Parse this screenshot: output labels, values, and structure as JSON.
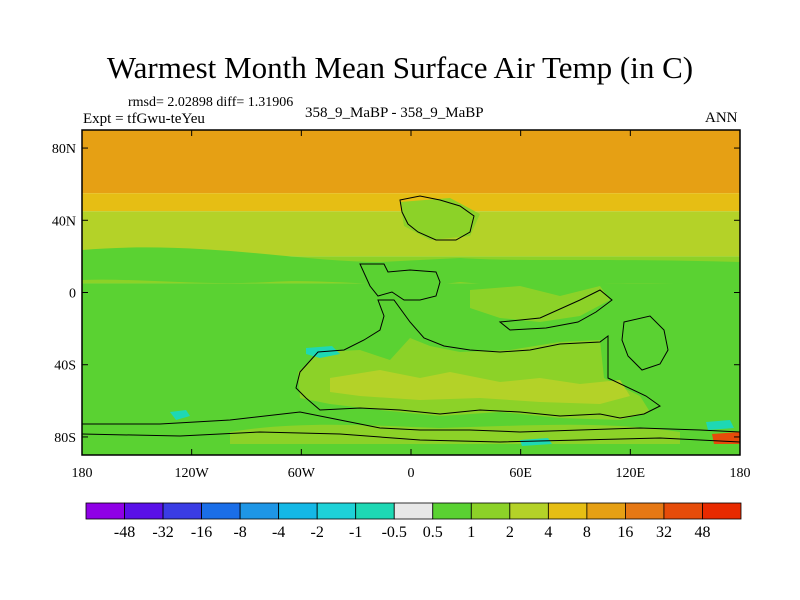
{
  "header": {
    "title": "Warmest Month Mean Surface Air Temp (in C)",
    "stats": "rmsd= 2.02898 diff= 1.31906",
    "experiment": "Expt = tfGwu-teYeu",
    "case": "358_9_MaBP - 358_9_MaBP",
    "period": "ANN"
  },
  "chart_data": {
    "type": "heatmap",
    "title": "Warmest Month Mean Surface Air Temp (in C)",
    "x_ticks": [
      "180",
      "120W",
      "60W",
      "0",
      "60E",
      "120E",
      "180"
    ],
    "x_tick_values": [
      -180,
      -120,
      -60,
      0,
      60,
      120,
      180
    ],
    "y_ticks": [
      "80N",
      "40N",
      "0",
      "40S",
      "80S"
    ],
    "y_tick_values": [
      80,
      40,
      0,
      -40,
      -80
    ],
    "xlim": [
      -180,
      180
    ],
    "ylim": [
      -90,
      90
    ],
    "colorbar": {
      "levels": [
        "-48",
        "-32",
        "-16",
        "-8",
        "-4",
        "-2",
        "-1",
        "-0.5",
        "0.5",
        "1",
        "2",
        "4",
        "8",
        "16",
        "32",
        "48"
      ],
      "colors": [
        "#8f00e6",
        "#5a10e8",
        "#3a3ce4",
        "#1a6ee8",
        "#1e96e6",
        "#14b8e6",
        "#1ed2d8",
        "#1ed8b4",
        "#e8e8e8",
        "#5ad232",
        "#8cd228",
        "#b4d228",
        "#e6be14",
        "#e6a014",
        "#e67814",
        "#e64c0a",
        "#e82a00"
      ]
    },
    "bands": [
      {
        "lat_from": 90,
        "lat_to": 55,
        "class": "8"
      },
      {
        "lat_from": 55,
        "lat_to": 45,
        "class": "4"
      },
      {
        "lat_from": 45,
        "lat_to": 20,
        "class": "2"
      },
      {
        "lat_from": 20,
        "lat_to": 5,
        "class": "1"
      },
      {
        "lat_from": 5,
        "lat_to": -90,
        "class": "0.5"
      }
    ]
  }
}
